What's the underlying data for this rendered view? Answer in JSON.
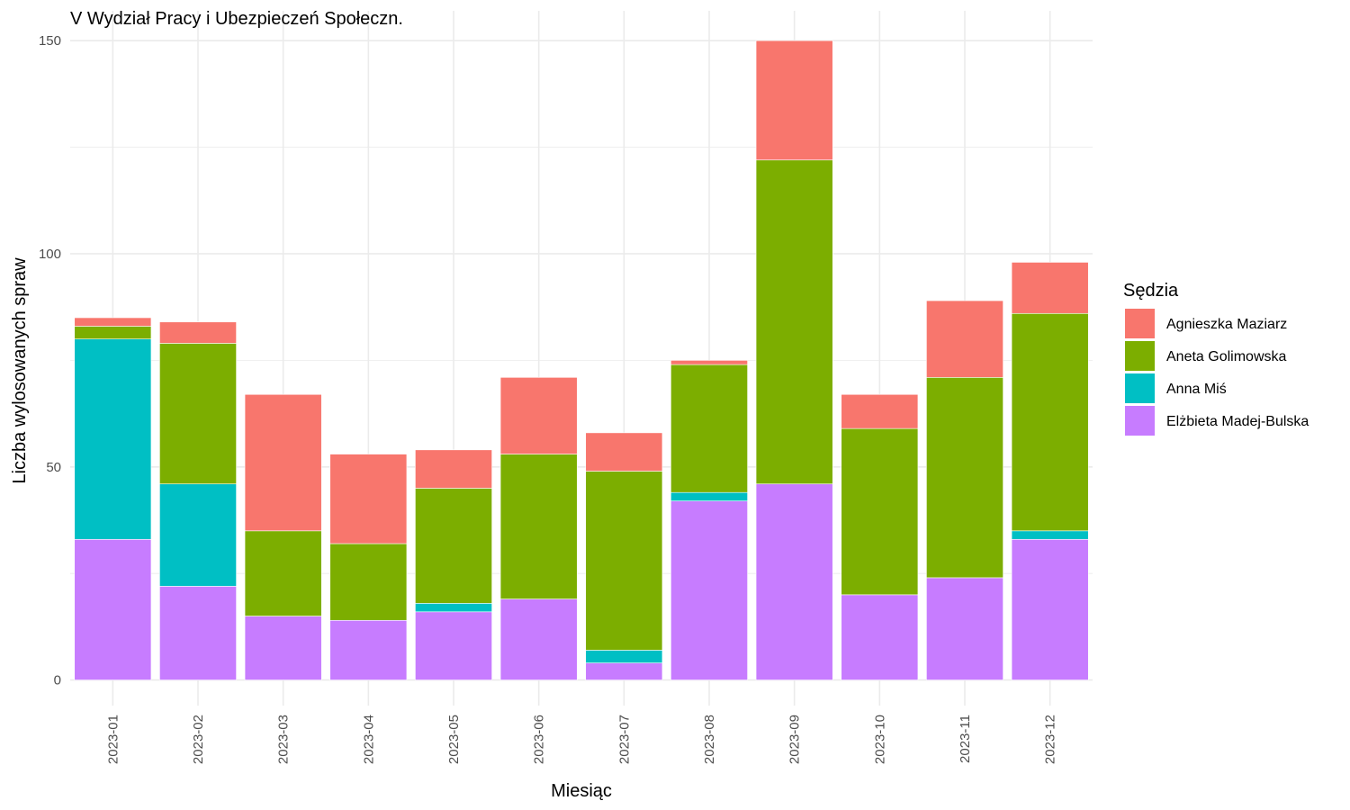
{
  "chart_data": {
    "type": "bar",
    "stacked": true,
    "title": "V Wydział Pracy i Ubezpieczeń Społeczn.",
    "xlabel": "Miesiąc",
    "ylabel": "Liczba wylosowanych spraw",
    "ylim": [
      -6,
      157
    ],
    "yticks": [
      0,
      50,
      100,
      150
    ],
    "grid": true,
    "legend_position": "right",
    "legend_title": "Sędzia",
    "categories": [
      "2023-01",
      "2023-02",
      "2023-03",
      "2023-04",
      "2023-05",
      "2023-06",
      "2023-07",
      "2023-08",
      "2023-09",
      "2023-10",
      "2023-11",
      "2023-12"
    ],
    "series": [
      {
        "name": "Elżbieta Madej-Bulska",
        "color": "#C77CFF",
        "values": [
          33,
          22,
          15,
          14,
          16,
          19,
          4,
          42,
          46,
          20,
          24,
          33
        ]
      },
      {
        "name": "Anna Miś",
        "color": "#00BFC4",
        "values": [
          47,
          24,
          0,
          0,
          2,
          0,
          3,
          2,
          0,
          0,
          0,
          2
        ]
      },
      {
        "name": "Aneta Golimowska",
        "color": "#7CAE00",
        "values": [
          3,
          33,
          20,
          18,
          27,
          34,
          42,
          30,
          76,
          39,
          47,
          51
        ]
      },
      {
        "name": "Agnieszka Maziarz",
        "color": "#F8766D",
        "values": [
          2,
          5,
          32,
          21,
          9,
          18,
          9,
          1,
          28,
          8,
          18,
          12
        ]
      }
    ],
    "legend_order": [
      "Agnieszka Maziarz",
      "Aneta Golimowska",
      "Anna Miś",
      "Elżbieta Madej-Bulska"
    ]
  }
}
